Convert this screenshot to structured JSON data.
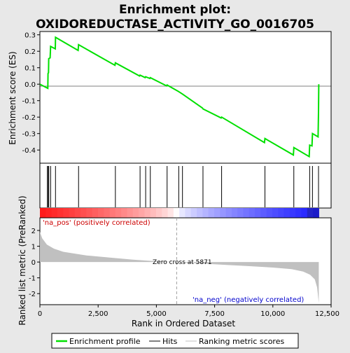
{
  "chart_data": {
    "type": "line",
    "title_line1": "Enrichment plot:",
    "title_line2": "OXIDOREDUCTASE_ACTIVITY_GO_0016705",
    "colors": {
      "enrichment_line": "#00e000",
      "ranking_fill": "#c0c0c0",
      "positive_text": "#cc0000",
      "negative_text": "#0000cc",
      "zero_cross_line": "#a0a0a0",
      "background": "#e8e8e8",
      "panel": "#ffffff"
    },
    "es_panel": {
      "ylabel": "Enrichment score (ES)",
      "yticks": [
        0.3,
        0.2,
        0.1,
        0.0,
        -0.1,
        -0.2,
        -0.3,
        -0.4
      ],
      "ytick_labels": [
        "0.3",
        "0.2",
        "0.1",
        "0.0",
        "-0.1",
        "-0.2",
        "-0.3",
        "-0.4"
      ],
      "ylim": [
        -0.48,
        0.32
      ],
      "profile": [
        [
          0,
          0.0
        ],
        [
          340,
          -0.025
        ],
        [
          350,
          0.065
        ],
        [
          370,
          0.07
        ],
        [
          380,
          0.155
        ],
        [
          440,
          0.16
        ],
        [
          460,
          0.23
        ],
        [
          660,
          0.215
        ],
        [
          670,
          0.285
        ],
        [
          1640,
          0.205
        ],
        [
          1660,
          0.24
        ],
        [
          3220,
          0.115
        ],
        [
          3240,
          0.13
        ],
        [
          4280,
          0.05
        ],
        [
          4300,
          0.055
        ],
        [
          4520,
          0.04
        ],
        [
          4540,
          0.045
        ],
        [
          4720,
          0.035
        ],
        [
          4740,
          0.04
        ],
        [
          5440,
          -0.01
        ],
        [
          5460,
          -0.005
        ],
        [
          5960,
          -0.045
        ],
        [
          6120,
          -0.06
        ],
        [
          6980,
          -0.145
        ],
        [
          7000,
          -0.15
        ],
        [
          7780,
          -0.205
        ],
        [
          7800,
          -0.2
        ],
        [
          9640,
          -0.355
        ],
        [
          9660,
          -0.33
        ],
        [
          10880,
          -0.43
        ],
        [
          10900,
          -0.385
        ],
        [
          11560,
          -0.44
        ],
        [
          11580,
          -0.37
        ],
        [
          11680,
          -0.375
        ],
        [
          11700,
          -0.3
        ],
        [
          11940,
          -0.32
        ],
        [
          11960,
          -0.17
        ],
        [
          11970,
          0.0
        ]
      ]
    },
    "hits_panel": {
      "hit_ranks": [
        320,
        360,
        380,
        460,
        670,
        1660,
        3240,
        4300,
        4540,
        4740,
        5460,
        5960,
        6120,
        7000,
        7800,
        9660,
        10900,
        11580,
        11700,
        11960
      ]
    },
    "rank_panel": {
      "ylabel": "Ranked list metric (PreRanked)",
      "yticks": [
        2,
        1,
        0,
        -1,
        -2
      ],
      "ytick_labels": [
        "2",
        "1",
        "0",
        "-1",
        "-2"
      ],
      "ylim": [
        -2.7,
        2.8
      ],
      "metric_profile": [
        [
          0,
          1.9
        ],
        [
          100,
          1.5
        ],
        [
          300,
          1.1
        ],
        [
          600,
          0.85
        ],
        [
          1000,
          0.65
        ],
        [
          2000,
          0.42
        ],
        [
          3000,
          0.28
        ],
        [
          4000,
          0.15
        ],
        [
          5000,
          0.05
        ],
        [
          5871,
          0.0
        ],
        [
          7000,
          -0.1
        ],
        [
          8000,
          -0.18
        ],
        [
          9000,
          -0.26
        ],
        [
          10000,
          -0.35
        ],
        [
          10800,
          -0.45
        ],
        [
          11300,
          -0.6
        ],
        [
          11600,
          -0.8
        ],
        [
          11800,
          -1.1
        ],
        [
          11900,
          -1.6
        ],
        [
          11970,
          -2.6
        ]
      ],
      "zero_cross_label": "Zero cross at 5871",
      "zero_cross_rank": 5871,
      "positive_label": "'na_pos' (positively correlated)",
      "negative_label": "'na_neg' (negatively correlated)"
    },
    "x_axis": {
      "xlabel": "Rank in Ordered Dataset",
      "xticks": [
        0,
        2500,
        5000,
        7500,
        10000,
        12500
      ],
      "xtick_labels": [
        "0",
        "2,500",
        "5,000",
        "7,500",
        "10,000",
        "12,500"
      ],
      "xlim": [
        0,
        12500
      ],
      "n_genes": 11970
    },
    "legend": {
      "placement": "bottom",
      "items": [
        {
          "label": "Enrichment profile",
          "kind": "green-line"
        },
        {
          "label": "Hits",
          "kind": "black-line"
        },
        {
          "label": "Ranking metric scores",
          "kind": "gray-line"
        }
      ]
    }
  }
}
